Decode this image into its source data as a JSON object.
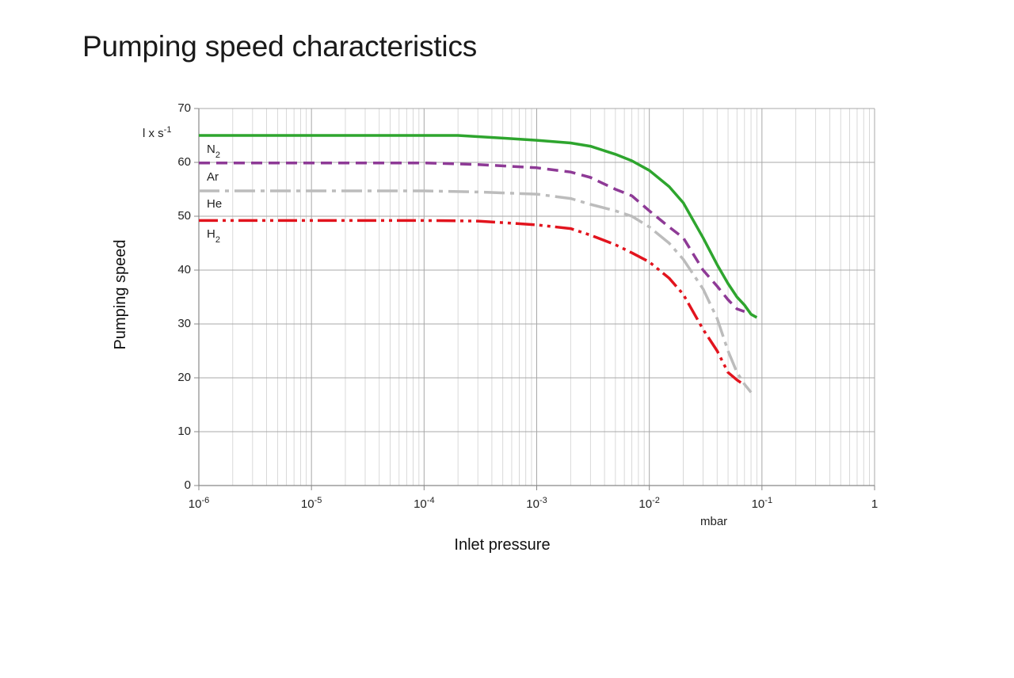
{
  "title": "Pumping speed characteristics",
  "chart_data": {
    "type": "line",
    "title": "Pumping speed characteristics",
    "xlabel": "Inlet pressure",
    "ylabel": "Pumping speed",
    "x_unit": "mbar",
    "y_unit": "l x s-1",
    "x_scale": "log",
    "xlim": [
      1e-06,
      1
    ],
    "ylim": [
      0,
      70
    ],
    "y_ticks": [
      0,
      10,
      20,
      30,
      40,
      50,
      60,
      70
    ],
    "x_ticks": [
      {
        "value": 1e-06,
        "base": "10",
        "exp": "-6"
      },
      {
        "value": 1e-05,
        "base": "10",
        "exp": "-5"
      },
      {
        "value": 0.0001,
        "base": "10",
        "exp": "-4"
      },
      {
        "value": 0.001,
        "base": "10",
        "exp": "-3"
      },
      {
        "value": 0.01,
        "base": "10",
        "exp": "-2"
      },
      {
        "value": 0.1,
        "base": "10",
        "exp": "-1"
      },
      {
        "value": 1,
        "base": "1",
        "exp": ""
      }
    ],
    "grid": true,
    "series": [
      {
        "name": "N2",
        "label_main": "N",
        "label_sub": "2",
        "color": "#2ea52e",
        "style": "solid",
        "points": [
          [
            1e-06,
            65
          ],
          [
            0.0002,
            65
          ],
          [
            0.0005,
            64.5
          ],
          [
            0.001,
            64.1
          ],
          [
            0.002,
            63.6
          ],
          [
            0.003,
            63
          ],
          [
            0.005,
            61.5
          ],
          [
            0.007,
            60.3
          ],
          [
            0.01,
            58.5
          ],
          [
            0.015,
            55.5
          ],
          [
            0.02,
            52.5
          ],
          [
            0.03,
            46
          ],
          [
            0.04,
            41
          ],
          [
            0.05,
            37.5
          ],
          [
            0.06,
            35
          ],
          [
            0.07,
            33.5
          ],
          [
            0.08,
            31.8
          ],
          [
            0.09,
            31.2
          ]
        ]
      },
      {
        "name": "Ar",
        "label_main": "Ar",
        "label_sub": "",
        "color": "#8e3a96",
        "style": "dashed",
        "points": [
          [
            1e-06,
            59.9
          ],
          [
            0.0001,
            59.9
          ],
          [
            0.0003,
            59.6
          ],
          [
            0.001,
            59
          ],
          [
            0.002,
            58.2
          ],
          [
            0.003,
            57.2
          ],
          [
            0.005,
            55
          ],
          [
            0.007,
            53.8
          ],
          [
            0.01,
            51
          ],
          [
            0.015,
            48
          ],
          [
            0.02,
            46
          ],
          [
            0.03,
            40
          ],
          [
            0.04,
            37
          ],
          [
            0.05,
            34.5
          ],
          [
            0.06,
            32.8
          ],
          [
            0.07,
            32.3
          ]
        ]
      },
      {
        "name": "He",
        "label_main": "He",
        "label_sub": "",
        "color": "#bcbcbc",
        "style": "dashdot",
        "points": [
          [
            1e-06,
            54.7
          ],
          [
            0.0001,
            54.7
          ],
          [
            0.0003,
            54.5
          ],
          [
            0.001,
            54.1
          ],
          [
            0.002,
            53.3
          ],
          [
            0.003,
            52.2
          ],
          [
            0.005,
            51
          ],
          [
            0.007,
            50
          ],
          [
            0.01,
            48
          ],
          [
            0.015,
            45
          ],
          [
            0.02,
            42
          ],
          [
            0.03,
            36.5
          ],
          [
            0.04,
            31
          ],
          [
            0.05,
            25
          ],
          [
            0.06,
            21
          ],
          [
            0.07,
            18.8
          ],
          [
            0.08,
            17.3
          ]
        ]
      },
      {
        "name": "H2",
        "label_main": "H",
        "label_sub": "2",
        "color": "#e2141e",
        "style": "dashdotdot",
        "points": [
          [
            1e-06,
            49.2
          ],
          [
            0.0001,
            49.2
          ],
          [
            0.0003,
            49.1
          ],
          [
            0.001,
            48.4
          ],
          [
            0.002,
            47.7
          ],
          [
            0.003,
            46.5
          ],
          [
            0.005,
            44.7
          ],
          [
            0.007,
            43.2
          ],
          [
            0.01,
            41.5
          ],
          [
            0.015,
            38.5
          ],
          [
            0.02,
            35.5
          ],
          [
            0.03,
            29
          ],
          [
            0.04,
            25
          ],
          [
            0.05,
            21
          ],
          [
            0.06,
            19.6
          ],
          [
            0.065,
            19.1
          ]
        ]
      }
    ]
  }
}
